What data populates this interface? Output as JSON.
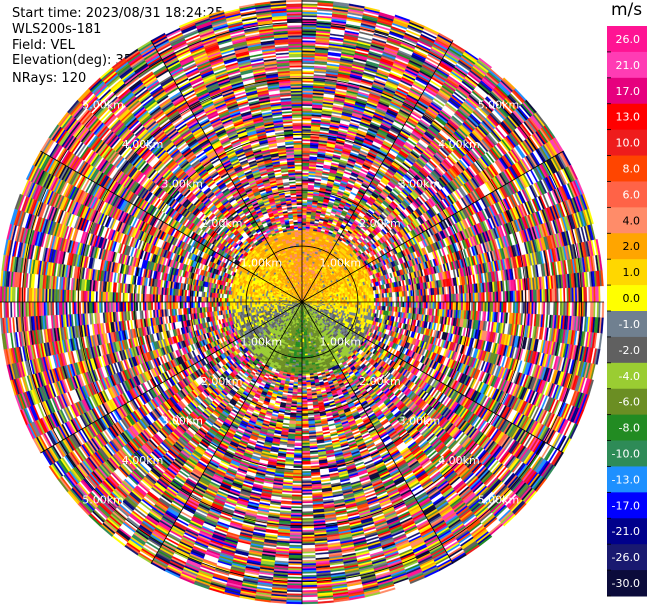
{
  "header": {
    "start_time": "Start time: 2023/08/31 18:24:25",
    "instrument": "WLS200s-181",
    "field": "Field: VEL",
    "elevation": "Elevation(deg): 35.30",
    "nrays": "NRays: 120"
  },
  "colorbar": {
    "unit": "m/s",
    "labels": [
      "26.0",
      "21.0",
      "17.0",
      "13.0",
      "10.0",
      "8.0",
      "6.0",
      "4.0",
      "2.0",
      "1.0",
      "0.0",
      "-1.0",
      "-2.0",
      "-4.0",
      "-6.0",
      "-8.0",
      "-10.0",
      "-13.0",
      "-17.0",
      "-21.0",
      "-26.0",
      "-30.0"
    ],
    "colors": [
      "#ff1493",
      "#ff3cb4",
      "#e6007e",
      "#ff0000",
      "#ee1c1c",
      "#ff4500",
      "#ff6347",
      "#ff8c69",
      "#ffa500",
      "#ffd700",
      "#ffff00",
      "#708090",
      "#606060",
      "#9acd32",
      "#6b8e23",
      "#228b22",
      "#2e8b57",
      "#1e90ff",
      "#0000ff",
      "#00008b",
      "#191970",
      "#0b0b3b"
    ]
  },
  "chart_data": {
    "type": "ppi",
    "field": "VEL",
    "units": "m/s",
    "elevation_deg": 35.3,
    "n_rays": 120,
    "range_rings_km": [
      1.0,
      2.0,
      3.0,
      4.0,
      5.0
    ],
    "range_labels": [
      "1.00km",
      "2.00km",
      "3.00km",
      "4.00km",
      "5.00km"
    ],
    "max_range_km": 5.4,
    "gate_km": 0.03,
    "valid_range_km": 1.3,
    "velocity_profile": [
      {
        "angle": 0,
        "value": 3.5
      },
      {
        "angle": 90,
        "value": 1.5
      },
      {
        "angle": 180,
        "value": -6
      },
      {
        "angle": 270,
        "value": 1.0
      }
    ]
  }
}
